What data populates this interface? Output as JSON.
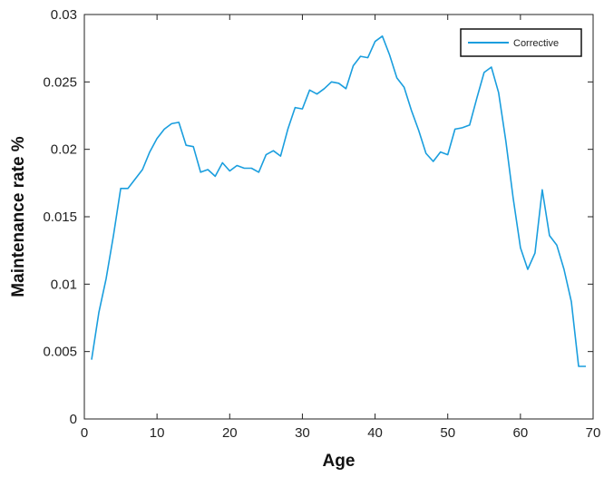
{
  "chart_data": {
    "type": "line",
    "title": "",
    "xlabel": "Age",
    "ylabel": "Maintenance rate %",
    "xlim": [
      0,
      70
    ],
    "ylim": [
      0,
      0.03
    ],
    "xticks": [
      0,
      10,
      20,
      30,
      40,
      50,
      60,
      70
    ],
    "xtick_labels": [
      "0",
      "10",
      "20",
      "30",
      "40",
      "50",
      "60",
      "70"
    ],
    "yticks": [
      0,
      0.005,
      0.01,
      0.015,
      0.02,
      0.025,
      0.03
    ],
    "ytick_labels": [
      "0",
      "0.005",
      "0.01",
      "0.015",
      "0.02",
      "0.025",
      "0.03"
    ],
    "grid": false,
    "legend_position": "top-right",
    "series": [
      {
        "name": "Corrective",
        "color": "#1a9ede",
        "x": [
          1,
          2,
          3,
          4,
          5,
          6,
          7,
          8,
          9,
          10,
          11,
          12,
          13,
          14,
          15,
          16,
          17,
          18,
          19,
          20,
          21,
          22,
          23,
          24,
          25,
          26,
          27,
          28,
          29,
          30,
          31,
          32,
          33,
          34,
          35,
          36,
          37,
          38,
          39,
          40,
          41,
          42,
          43,
          44,
          45,
          46,
          47,
          48,
          49,
          50,
          51,
          52,
          53,
          54,
          55,
          56,
          57,
          58,
          59,
          60,
          61,
          62,
          63,
          64,
          65,
          66,
          67,
          68,
          69
        ],
        "y": [
          0.0044,
          0.0079,
          0.0104,
          0.0136,
          0.0171,
          0.0171,
          0.0178,
          0.0185,
          0.0198,
          0.0208,
          0.0215,
          0.0219,
          0.022,
          0.0203,
          0.0202,
          0.0183,
          0.0185,
          0.018,
          0.019,
          0.0184,
          0.0188,
          0.0186,
          0.0186,
          0.0183,
          0.0196,
          0.0199,
          0.0195,
          0.0215,
          0.0231,
          0.023,
          0.0244,
          0.0241,
          0.0245,
          0.025,
          0.0249,
          0.0245,
          0.0262,
          0.0269,
          0.0268,
          0.028,
          0.0284,
          0.027,
          0.0253,
          0.0246,
          0.0229,
          0.0214,
          0.0197,
          0.0191,
          0.0198,
          0.0196,
          0.0215,
          0.0216,
          0.0218,
          0.0238,
          0.0257,
          0.0261,
          0.0242,
          0.0206,
          0.0164,
          0.0127,
          0.0111,
          0.0123,
          0.017,
          0.0136,
          0.0129,
          0.0111,
          0.0087,
          0.0039,
          0.0039
        ]
      }
    ]
  }
}
